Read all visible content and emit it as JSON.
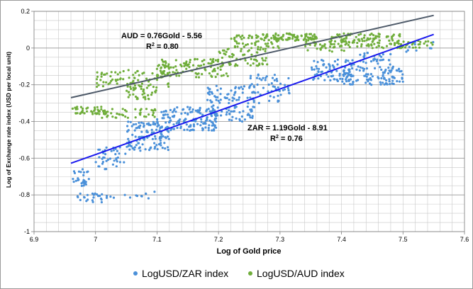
{
  "chart_data": {
    "type": "scatter",
    "title": "",
    "xlabel": "Log of Gold price",
    "ylabel": "Log of Exchange rate index (USD per local unit)",
    "xlim": [
      6.9,
      7.6
    ],
    "ylim": [
      -1,
      0.2
    ],
    "x_ticks": [
      "6.9",
      "7",
      "7.1",
      "7.2",
      "7.3",
      "7.4",
      "7.5",
      "7.6"
    ],
    "y_ticks": [
      "-1",
      "-0.8",
      "-0.6",
      "-0.4",
      "-0.2",
      "0",
      "0.2"
    ],
    "grid": true,
    "legend_position": "bottom",
    "series": [
      {
        "name": "LogUSD/ZAR index",
        "color": "#4a90d9",
        "segments": [
          {
            "x0": 6.96,
            "x1": 6.99,
            "y_low": -0.76,
            "y_high": -0.66,
            "n": 28
          },
          {
            "x0": 6.97,
            "x1": 7.03,
            "y_low": -0.84,
            "y_high": -0.79,
            "n": 26
          },
          {
            "x0": 7.0,
            "x1": 7.05,
            "y_low": -0.66,
            "y_high": -0.54,
            "n": 40
          },
          {
            "x0": 7.04,
            "x1": 7.1,
            "y_low": -0.82,
            "y_high": -0.78,
            "n": 10
          },
          {
            "x0": 7.05,
            "x1": 7.12,
            "y_low": -0.56,
            "y_high": -0.4,
            "n": 120
          },
          {
            "x0": 7.1,
            "x1": 7.2,
            "y_low": -0.45,
            "y_high": -0.32,
            "n": 140
          },
          {
            "x0": 7.18,
            "x1": 7.26,
            "y_low": -0.4,
            "y_high": -0.2,
            "n": 110
          },
          {
            "x0": 7.25,
            "x1": 7.32,
            "y_low": -0.3,
            "y_high": -0.14,
            "n": 60
          },
          {
            "x0": 7.35,
            "x1": 7.42,
            "y_low": -0.18,
            "y_high": -0.06,
            "n": 80
          },
          {
            "x0": 7.4,
            "x1": 7.5,
            "y_low": -0.2,
            "y_high": -0.1,
            "n": 110
          },
          {
            "x0": 7.42,
            "x1": 7.48,
            "y_low": -0.09,
            "y_high": -0.02,
            "n": 30
          },
          {
            "x0": 7.5,
            "x1": 7.55,
            "y_low": -0.02,
            "y_high": 0.04,
            "n": 12
          }
        ],
        "trendline": {
          "slope": 1.19,
          "intercept": -8.91,
          "x_start": 6.96,
          "x_end": 7.55,
          "color": "#1a1aee"
        },
        "annotation": {
          "equation": "ZAR = 1.19Gold - 8.91",
          "r2_prefix": "R",
          "r2_exponent": "2",
          "r2_suffix": " = 0.76"
        }
      },
      {
        "name": "LogUSD/AUD index",
        "color": "#6fad3a",
        "segments": [
          {
            "x0": 6.96,
            "x1": 7.02,
            "y_low": -0.36,
            "y_high": -0.32,
            "n": 40
          },
          {
            "x0": 7.0,
            "x1": 7.1,
            "y_low": -0.38,
            "y_high": -0.33,
            "n": 45
          },
          {
            "x0": 7.05,
            "x1": 7.1,
            "y_low": -0.28,
            "y_high": -0.2,
            "n": 40
          },
          {
            "x0": 7.0,
            "x1": 7.12,
            "y_low": -0.22,
            "y_high": -0.12,
            "n": 80
          },
          {
            "x0": 7.1,
            "x1": 7.22,
            "y_low": -0.16,
            "y_high": -0.06,
            "n": 110
          },
          {
            "x0": 7.2,
            "x1": 7.28,
            "y_low": -0.1,
            "y_high": 0.0,
            "n": 60
          },
          {
            "x0": 7.22,
            "x1": 7.3,
            "y_low": 0.0,
            "y_high": 0.07,
            "n": 60
          },
          {
            "x0": 7.27,
            "x1": 7.36,
            "y_low": 0.04,
            "y_high": 0.08,
            "n": 80
          },
          {
            "x0": 7.34,
            "x1": 7.41,
            "y_low": -0.02,
            "y_high": 0.04,
            "n": 40
          },
          {
            "x0": 7.38,
            "x1": 7.5,
            "y_low": 0.0,
            "y_high": 0.08,
            "n": 120
          },
          {
            "x0": 7.48,
            "x1": 7.55,
            "y_low": 0.0,
            "y_high": 0.04,
            "n": 30
          }
        ],
        "trendline": {
          "slope": 0.76,
          "intercept": -5.56,
          "x_start": 6.96,
          "x_end": 7.55,
          "color": "#4d5968"
        },
        "annotation": {
          "equation": "AUD = 0.76Gold - 5.56",
          "r2_prefix": "R",
          "r2_exponent": "2",
          "r2_suffix": " = 0.80"
        }
      }
    ]
  }
}
